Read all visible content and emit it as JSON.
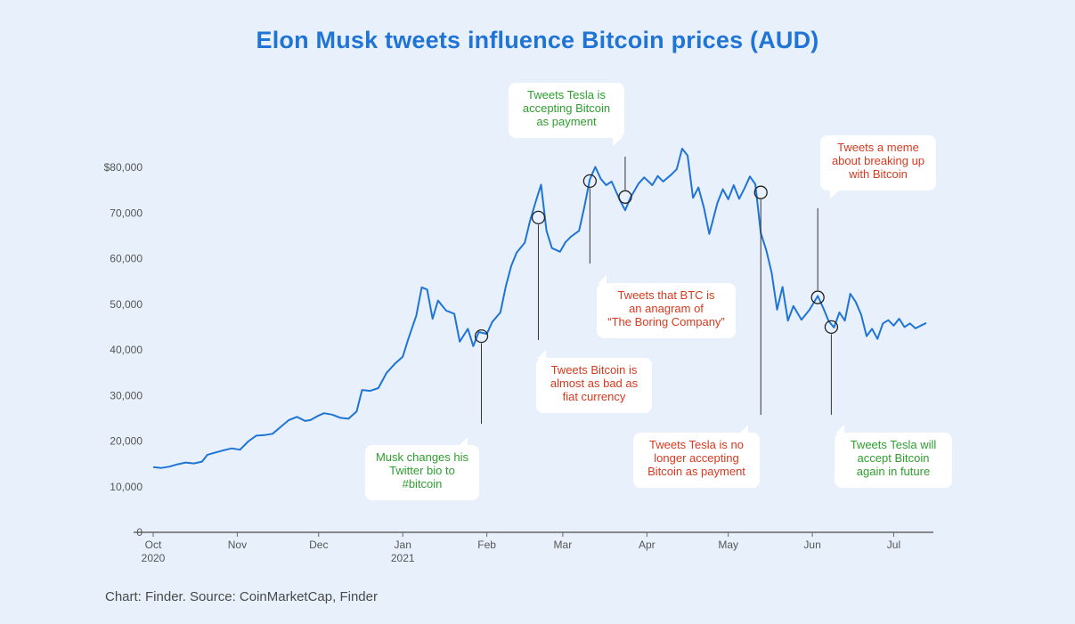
{
  "chart_data": {
    "type": "line",
    "title": "Elon Musk tweets influence Bitcoin prices (AUD)",
    "source": "Chart: Finder. Source: CoinMarketCap, Finder",
    "x_start": "2020-10-01",
    "x_end": "2021-07-15",
    "ylim": [
      0,
      80000
    ],
    "yticks": [
      {
        "value": 0,
        "label": "0"
      },
      {
        "value": 10000,
        "label": "10,000"
      },
      {
        "value": 20000,
        "label": "20,000"
      },
      {
        "value": 30000,
        "label": "30,000"
      },
      {
        "value": 40000,
        "label": "40,000"
      },
      {
        "value": 50000,
        "label": "50,000"
      },
      {
        "value": 60000,
        "label": "60,000"
      },
      {
        "value": 70000,
        "label": "70,000"
      },
      {
        "value": 80000,
        "label": "$80,000"
      }
    ],
    "xticks": [
      {
        "date": "2020-10-01",
        "label": "Oct",
        "sub": "2020"
      },
      {
        "date": "2020-11-01",
        "label": "Nov",
        "sub": ""
      },
      {
        "date": "2020-12-01",
        "label": "Dec",
        "sub": ""
      },
      {
        "date": "2021-01-01",
        "label": "Jan",
        "sub": "2021"
      },
      {
        "date": "2021-02-01",
        "label": "Feb",
        "sub": ""
      },
      {
        "date": "2021-03-01",
        "label": "Mar",
        "sub": ""
      },
      {
        "date": "2021-04-01",
        "label": "Apr",
        "sub": ""
      },
      {
        "date": "2021-05-01",
        "label": "May",
        "sub": ""
      },
      {
        "date": "2021-06-01",
        "label": "Jun",
        "sub": ""
      },
      {
        "date": "2021-07-01",
        "label": "Jul",
        "sub": ""
      }
    ],
    "series": [
      {
        "color": "#1f74d6",
        "points": [
          [
            "2020-10-01",
            14300
          ],
          [
            "2020-10-04",
            14100
          ],
          [
            "2020-10-07",
            14400
          ],
          [
            "2020-10-10",
            14900
          ],
          [
            "2020-10-13",
            15300
          ],
          [
            "2020-10-16",
            15100
          ],
          [
            "2020-10-19",
            15500
          ],
          [
            "2020-10-21",
            17000
          ],
          [
            "2020-10-24",
            17500
          ],
          [
            "2020-10-27",
            18000
          ],
          [
            "2020-10-30",
            18400
          ],
          [
            "2020-11-02",
            18100
          ],
          [
            "2020-11-05",
            19900
          ],
          [
            "2020-11-08",
            21200
          ],
          [
            "2020-11-11",
            21300
          ],
          [
            "2020-11-14",
            21600
          ],
          [
            "2020-11-17",
            23100
          ],
          [
            "2020-11-20",
            24600
          ],
          [
            "2020-11-23",
            25300
          ],
          [
            "2020-11-26",
            24400
          ],
          [
            "2020-11-28",
            24600
          ],
          [
            "2020-12-01",
            25600
          ],
          [
            "2020-12-03",
            26100
          ],
          [
            "2020-12-06",
            25800
          ],
          [
            "2020-12-09",
            25100
          ],
          [
            "2020-12-12",
            24900
          ],
          [
            "2020-12-15",
            26500
          ],
          [
            "2020-12-17",
            31200
          ],
          [
            "2020-12-20",
            31000
          ],
          [
            "2020-12-23",
            31600
          ],
          [
            "2020-12-26",
            34900
          ],
          [
            "2020-12-29",
            36900
          ],
          [
            "2021-01-01",
            38500
          ],
          [
            "2021-01-03",
            42300
          ],
          [
            "2021-01-06",
            47500
          ],
          [
            "2021-01-08",
            53700
          ],
          [
            "2021-01-10",
            53200
          ],
          [
            "2021-01-12",
            46800
          ],
          [
            "2021-01-14",
            50800
          ],
          [
            "2021-01-17",
            48600
          ],
          [
            "2021-01-20",
            47900
          ],
          [
            "2021-01-22",
            41800
          ],
          [
            "2021-01-25",
            44600
          ],
          [
            "2021-01-27",
            40800
          ],
          [
            "2021-01-29",
            43900
          ],
          [
            "2021-02-01",
            43500
          ],
          [
            "2021-02-03",
            46100
          ],
          [
            "2021-02-06",
            48200
          ],
          [
            "2021-02-08",
            53900
          ],
          [
            "2021-02-10",
            58400
          ],
          [
            "2021-02-12",
            61300
          ],
          [
            "2021-02-15",
            63500
          ],
          [
            "2021-02-17",
            68400
          ],
          [
            "2021-02-19",
            72400
          ],
          [
            "2021-02-21",
            76200
          ],
          [
            "2021-02-23",
            66100
          ],
          [
            "2021-02-25",
            62300
          ],
          [
            "2021-02-28",
            61500
          ],
          [
            "2021-03-02",
            63600
          ],
          [
            "2021-03-04",
            64800
          ],
          [
            "2021-03-07",
            66100
          ],
          [
            "2021-03-09",
            71500
          ],
          [
            "2021-03-11",
            77400
          ],
          [
            "2021-03-13",
            80100
          ],
          [
            "2021-03-15",
            77500
          ],
          [
            "2021-03-17",
            76100
          ],
          [
            "2021-03-19",
            76900
          ],
          [
            "2021-03-22",
            72900
          ],
          [
            "2021-03-24",
            70600
          ],
          [
            "2021-03-26",
            73400
          ],
          [
            "2021-03-29",
            76500
          ],
          [
            "2021-03-31",
            77800
          ],
          [
            "2021-04-03",
            76100
          ],
          [
            "2021-04-05",
            78100
          ],
          [
            "2021-04-07",
            76900
          ],
          [
            "2021-04-10",
            78400
          ],
          [
            "2021-04-12",
            79600
          ],
          [
            "2021-04-14",
            84100
          ],
          [
            "2021-04-16",
            82600
          ],
          [
            "2021-04-18",
            73300
          ],
          [
            "2021-04-20",
            75600
          ],
          [
            "2021-04-22",
            71200
          ],
          [
            "2021-04-24",
            65400
          ],
          [
            "2021-04-27",
            72200
          ],
          [
            "2021-04-29",
            75200
          ],
          [
            "2021-05-01",
            73000
          ],
          [
            "2021-05-03",
            76100
          ],
          [
            "2021-05-05",
            73100
          ],
          [
            "2021-05-07",
            75400
          ],
          [
            "2021-05-09",
            78000
          ],
          [
            "2021-05-11",
            76300
          ],
          [
            "2021-05-13",
            65600
          ],
          [
            "2021-05-15",
            61900
          ],
          [
            "2021-05-17",
            56900
          ],
          [
            "2021-05-19",
            48800
          ],
          [
            "2021-05-21",
            53800
          ],
          [
            "2021-05-23",
            46400
          ],
          [
            "2021-05-25",
            49600
          ],
          [
            "2021-05-28",
            46600
          ],
          [
            "2021-05-31",
            48800
          ],
          [
            "2021-06-03",
            51800
          ],
          [
            "2021-06-05",
            49200
          ],
          [
            "2021-06-07",
            46300
          ],
          [
            "2021-06-09",
            44900
          ],
          [
            "2021-06-11",
            48200
          ],
          [
            "2021-06-13",
            46400
          ],
          [
            "2021-06-15",
            52300
          ],
          [
            "2021-06-17",
            50500
          ],
          [
            "2021-06-19",
            47700
          ],
          [
            "2021-06-21",
            43000
          ],
          [
            "2021-06-23",
            44600
          ],
          [
            "2021-06-25",
            42400
          ],
          [
            "2021-06-27",
            45800
          ],
          [
            "2021-06-29",
            46500
          ],
          [
            "2021-07-01",
            45300
          ],
          [
            "2021-07-03",
            46800
          ],
          [
            "2021-07-05",
            45000
          ],
          [
            "2021-07-07",
            45800
          ],
          [
            "2021-07-09",
            44700
          ],
          [
            "2021-07-11",
            45300
          ],
          [
            "2021-07-13",
            45900
          ]
        ]
      }
    ],
    "annotations": [
      {
        "date": "2021-01-30",
        "value": 43000,
        "text_lines": [
          "Musk changes his",
          "Twitter bio to",
          "#bitcoin"
        ],
        "color": "#2e9e2e",
        "placement": "below"
      },
      {
        "date": "2021-02-20",
        "value": 69000,
        "text_lines": [
          "Tweets Bitcoin is",
          "almost as bad as",
          "fiat currency"
        ],
        "color": "#d63a1f",
        "placement": "below"
      },
      {
        "date": "2021-03-11",
        "value": 77000,
        "text_lines": [
          "Tweets that BTC is",
          "an anagram of",
          "“The Boring Company”"
        ],
        "color": "#d63a1f",
        "placement": "below"
      },
      {
        "date": "2021-03-24",
        "value": 73500,
        "text_lines": [
          "Tweets Tesla is",
          "accepting Bitcoin",
          "as payment"
        ],
        "color": "#2e9e2e",
        "placement": "above"
      },
      {
        "date": "2021-05-13",
        "value": 74500,
        "text_lines": [
          "Tweets Tesla is no",
          "longer accepting",
          "Bitcoin as payment"
        ],
        "color": "#d63a1f",
        "placement": "below"
      },
      {
        "date": "2021-06-03",
        "value": 51500,
        "text_lines": [
          "Tweets a meme",
          "about breaking up",
          "with Bitcoin"
        ],
        "color": "#d63a1f",
        "placement": "above"
      },
      {
        "date": "2021-06-08",
        "value": 45000,
        "text_lines": [
          "Tweets Tesla will",
          "accept Bitcoin",
          "again in future"
        ],
        "color": "#2e9e2e",
        "placement": "below"
      }
    ],
    "grid": false
  }
}
